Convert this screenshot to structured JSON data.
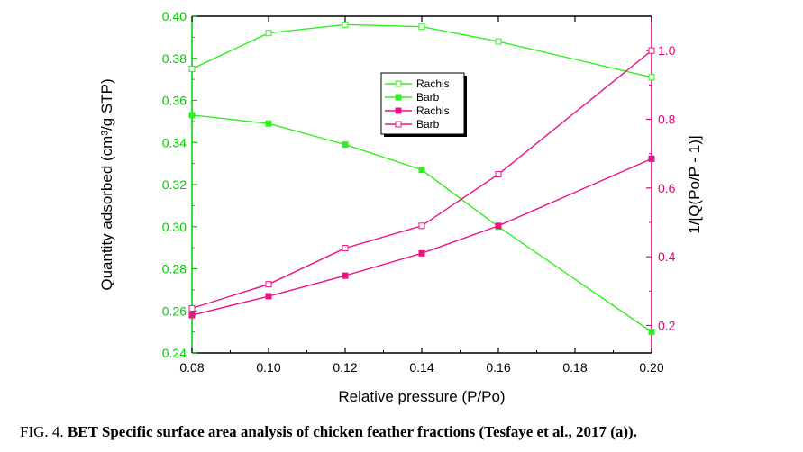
{
  "chart_data": {
    "type": "line",
    "x": [
      0.08,
      0.1,
      0.12,
      0.14,
      0.16,
      0.2
    ],
    "x_tick_labels": [
      "0.08",
      "0.10",
      "0.12",
      "0.14",
      "0.16",
      "0.18",
      "0.20"
    ],
    "x_ticks": [
      0.08,
      0.1,
      0.12,
      0.14,
      0.16,
      0.18,
      0.2
    ],
    "xlim": [
      0.08,
      0.2
    ],
    "xlabel": "Relative pressure (P/Po)",
    "y_left": {
      "label": "Quantity adsorbed (cm³/g STP)",
      "lim": [
        0.24,
        0.4
      ],
      "ticks": [
        0.24,
        0.26,
        0.28,
        0.3,
        0.32,
        0.34,
        0.36,
        0.38,
        0.4
      ],
      "tick_labels": [
        "0.24",
        "0.26",
        "0.28",
        "0.30",
        "0.32",
        "0.34",
        "0.36",
        "0.38",
        "0.40"
      ],
      "color": "#00cc00"
    },
    "y_right": {
      "label": "1/[Q(Po/P - 1)]",
      "lim": [
        0.12,
        1.1
      ],
      "ticks": [
        0.2,
        0.4,
        0.6,
        0.8,
        1.0
      ],
      "tick_labels": [
        "0.2",
        "0.4",
        "0.6",
        "0.8",
        "1.0"
      ],
      "color": "#e6007e"
    },
    "series": [
      {
        "name": "Rachis",
        "axis": "left",
        "marker": "open-square",
        "color": "#33ee22",
        "values": [
          0.375,
          0.392,
          0.396,
          0.395,
          0.388,
          0.371
        ]
      },
      {
        "name": "Barb",
        "axis": "left",
        "marker": "filled-square",
        "color": "#33ee22",
        "values": [
          0.353,
          0.349,
          0.339,
          0.327,
          0.3,
          0.25
        ]
      },
      {
        "name": "Rachis",
        "axis": "right",
        "marker": "filled-square",
        "color": "#ee1188",
        "values": [
          0.23,
          0.285,
          0.345,
          0.41,
          0.49,
          0.685
        ]
      },
      {
        "name": "Barb",
        "axis": "right",
        "marker": "open-square",
        "color": "#ee1188",
        "values": [
          0.25,
          0.32,
          0.425,
          0.49,
          0.64,
          1.0
        ]
      }
    ],
    "legend_position": "center-top"
  },
  "caption": {
    "prefix": "FIG. 4. ",
    "bold": "BET Specific surface area analysis of chicken feather fractions (Tesfaye et al., 2017 (a))."
  }
}
